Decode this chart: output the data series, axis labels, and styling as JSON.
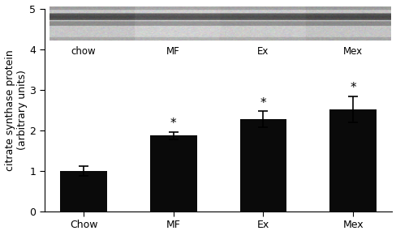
{
  "categories": [
    "Chow",
    "MF",
    "Ex",
    "Mex"
  ],
  "values": [
    1.0,
    1.87,
    2.27,
    2.52
  ],
  "errors": [
    0.12,
    0.09,
    0.2,
    0.32
  ],
  "bar_color": "#0a0a0a",
  "ylabel": "citrate synthase protein\n(arbitrary units)",
  "ylim": [
    0,
    5
  ],
  "yticks": [
    0,
    1,
    2,
    3,
    4,
    5
  ],
  "blot_labels": [
    "chow",
    "MF",
    "Ex",
    "Mex"
  ],
  "significant": [
    false,
    true,
    true,
    true
  ],
  "bar_width": 0.52,
  "figsize": [
    4.89,
    2.9
  ],
  "dpi": 100,
  "ylabel_fontsize": 9,
  "tick_fontsize": 9,
  "star_fontsize": 11
}
